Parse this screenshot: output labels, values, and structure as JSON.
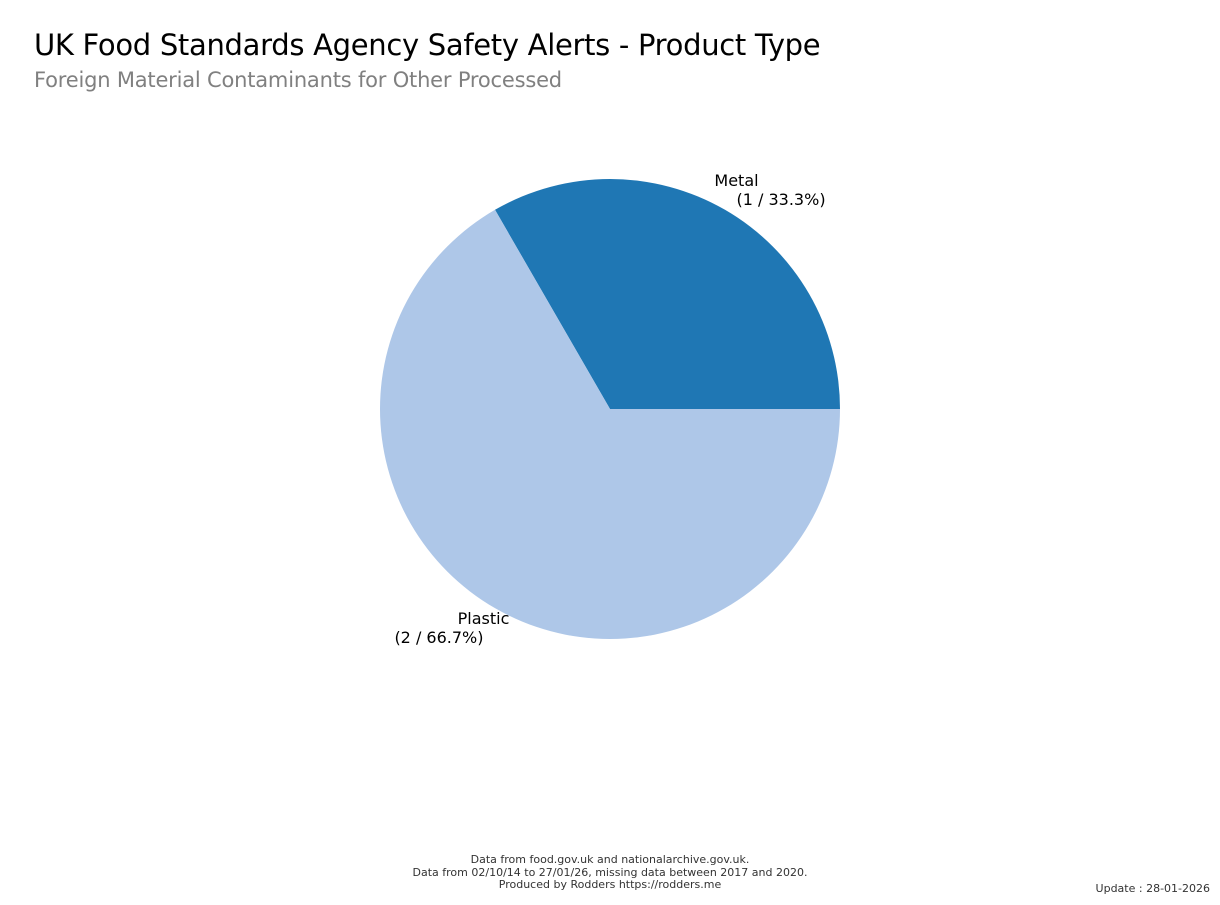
{
  "header": {
    "title": "UK Food Standards Agency Safety Alerts - Product Type",
    "subtitle": "Foreign Material Contaminants for Other Processed"
  },
  "chart_data": {
    "type": "pie",
    "title": "UK Food Standards Agency Safety Alerts - Product Type",
    "subtitle": "Foreign Material Contaminants for Other Processed",
    "slices": [
      {
        "label": "Metal",
        "value": 1,
        "percent": 33.3,
        "display": "(1 / 33.3%)",
        "color": "#1f77b4"
      },
      {
        "label": "Plastic",
        "value": 2,
        "percent": 66.7,
        "display": "(2 / 66.7%)",
        "color": "#aec7e8"
      }
    ],
    "legend": "none",
    "grid": false
  },
  "footer": {
    "line1": "Data from food.gov.uk and nationalarchive.gov.uk.",
    "line2": "Data from 02/10/14 to 27/01/26, missing data between 2017 and 2020.",
    "line3": "Produced by Rodders https://rodders.me",
    "update": "Update : 28-01-2026"
  }
}
